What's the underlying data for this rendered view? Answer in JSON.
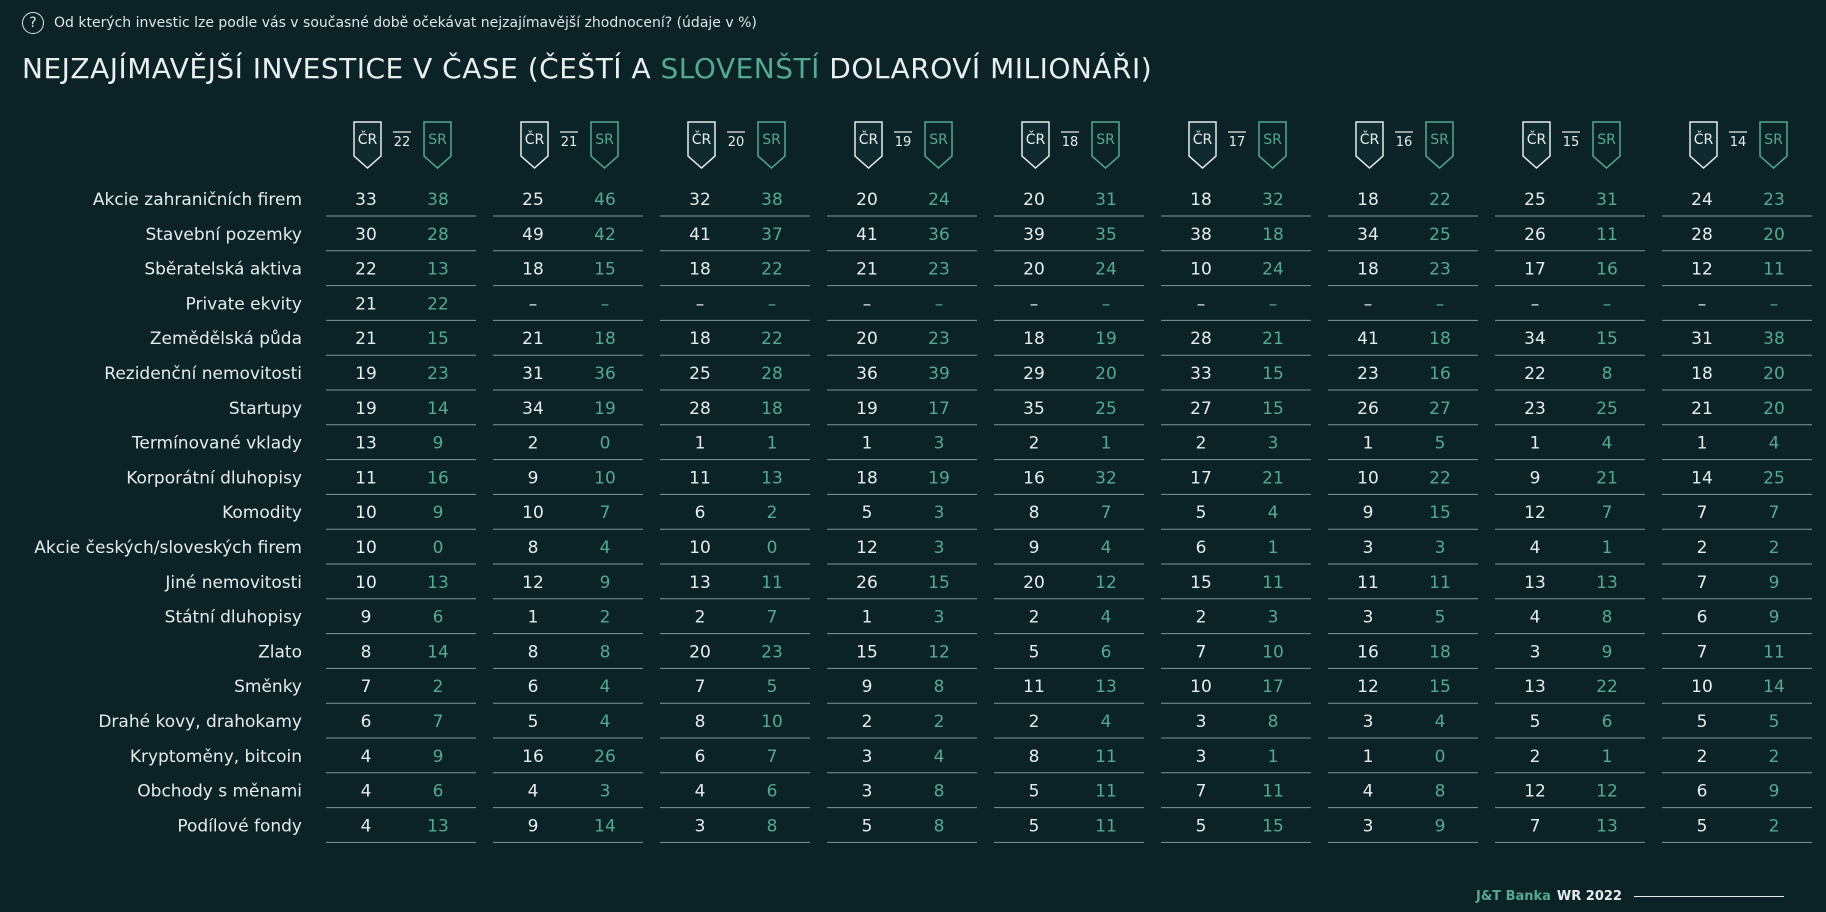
{
  "question": "Od kterých investic lze podle vás v současné době očekávat nejzajímavější zhodnocení? (údaje v %)",
  "title_part1": "NEJZAJÍMAVĚJŠÍ INVESTICE V ČASE (ČEŠTÍ A ",
  "title_part2": "SLOVENŠTÍ",
  "title_part3": " DOLAROVÍ MILIONÁŘI)",
  "colors": {
    "background": "#0b2226",
    "cz": "#e6ecec",
    "sk": "#55a993",
    "rule": "#7f9a9a"
  },
  "footer": {
    "brand": "J&T Banka",
    "report": "WR 2022"
  },
  "chart_data": {
    "type": "table",
    "badge_cz": "ČR",
    "badge_sk": "SR",
    "years": [
      "22",
      "21",
      "20",
      "19",
      "18",
      "17",
      "16",
      "15",
      "14"
    ],
    "dash": "–",
    "rows": [
      {
        "label": "Akcie zahraničních firem",
        "cz": [
          33,
          25,
          32,
          20,
          20,
          18,
          18,
          25,
          24
        ],
        "sk": [
          38,
          46,
          38,
          24,
          31,
          32,
          22,
          31,
          23
        ]
      },
      {
        "label": "Stavební pozemky",
        "cz": [
          30,
          49,
          41,
          41,
          39,
          38,
          34,
          26,
          28
        ],
        "sk": [
          28,
          42,
          37,
          36,
          35,
          18,
          25,
          11,
          20
        ]
      },
      {
        "label": "Sběratelská aktiva",
        "cz": [
          22,
          18,
          18,
          21,
          20,
          10,
          18,
          17,
          12
        ],
        "sk": [
          13,
          15,
          22,
          23,
          24,
          24,
          23,
          16,
          11
        ]
      },
      {
        "label": "Private ekvity",
        "cz": [
          21,
          null,
          null,
          null,
          null,
          null,
          null,
          null,
          null
        ],
        "sk": [
          22,
          null,
          null,
          null,
          null,
          null,
          null,
          null,
          null
        ]
      },
      {
        "label": "Zemědělská půda",
        "cz": [
          21,
          21,
          18,
          20,
          18,
          28,
          41,
          34,
          31
        ],
        "sk": [
          15,
          18,
          22,
          23,
          19,
          21,
          18,
          15,
          38
        ]
      },
      {
        "label": "Rezidenční nemovitosti",
        "cz": [
          19,
          31,
          25,
          36,
          29,
          33,
          23,
          22,
          18
        ],
        "sk": [
          23,
          36,
          28,
          39,
          20,
          15,
          16,
          8,
          20
        ]
      },
      {
        "label": "Startupy",
        "cz": [
          19,
          34,
          28,
          19,
          35,
          27,
          26,
          23,
          21
        ],
        "sk": [
          14,
          19,
          18,
          17,
          25,
          15,
          27,
          25,
          20
        ]
      },
      {
        "label": "Termínované vklady",
        "cz": [
          13,
          2,
          1,
          1,
          2,
          2,
          1,
          1,
          1
        ],
        "sk": [
          9,
          0,
          1,
          3,
          1,
          3,
          5,
          4,
          4
        ]
      },
      {
        "label": "Korporátní dluhopisy",
        "cz": [
          11,
          9,
          11,
          18,
          16,
          17,
          10,
          9,
          14
        ],
        "sk": [
          16,
          10,
          13,
          19,
          32,
          21,
          22,
          21,
          25
        ]
      },
      {
        "label": "Komodity",
        "cz": [
          10,
          10,
          6,
          5,
          8,
          5,
          9,
          12,
          7
        ],
        "sk": [
          9,
          7,
          2,
          3,
          7,
          4,
          15,
          7,
          7
        ]
      },
      {
        "label": "Akcie českých/sloveských firem",
        "cz": [
          10,
          8,
          10,
          12,
          9,
          6,
          3,
          4,
          2
        ],
        "sk": [
          0,
          4,
          0,
          3,
          4,
          1,
          3,
          1,
          2
        ]
      },
      {
        "label": "Jiné nemovitosti",
        "cz": [
          10,
          12,
          13,
          26,
          20,
          15,
          11,
          13,
          7
        ],
        "sk": [
          13,
          9,
          11,
          15,
          12,
          11,
          11,
          13,
          9
        ]
      },
      {
        "label": "Státní dluhopisy",
        "cz": [
          9,
          1,
          2,
          1,
          2,
          2,
          3,
          4,
          6
        ],
        "sk": [
          6,
          2,
          7,
          3,
          4,
          3,
          5,
          8,
          9
        ]
      },
      {
        "label": "Zlato",
        "cz": [
          8,
          8,
          20,
          15,
          5,
          7,
          16,
          3,
          7
        ],
        "sk": [
          14,
          8,
          23,
          12,
          6,
          10,
          18,
          9,
          11
        ]
      },
      {
        "label": "Směnky",
        "cz": [
          7,
          6,
          7,
          9,
          11,
          10,
          12,
          13,
          10
        ],
        "sk": [
          2,
          4,
          5,
          8,
          13,
          17,
          15,
          22,
          14
        ]
      },
      {
        "label": "Drahé kovy, drahokamy",
        "cz": [
          6,
          5,
          8,
          2,
          2,
          3,
          3,
          5,
          5
        ],
        "sk": [
          7,
          4,
          10,
          2,
          4,
          8,
          4,
          6,
          5
        ]
      },
      {
        "label": "Kryptoměny, bitcoin",
        "cz": [
          4,
          16,
          6,
          3,
          8,
          3,
          1,
          2,
          2
        ],
        "sk": [
          9,
          26,
          7,
          4,
          11,
          1,
          0,
          1,
          2
        ]
      },
      {
        "label": "Obchody s měnami",
        "cz": [
          4,
          4,
          4,
          3,
          5,
          7,
          4,
          12,
          6
        ],
        "sk": [
          6,
          3,
          6,
          8,
          11,
          11,
          8,
          12,
          9
        ]
      },
      {
        "label": "Podílové fondy",
        "cz": [
          4,
          9,
          3,
          5,
          5,
          5,
          3,
          7,
          5
        ],
        "sk": [
          13,
          14,
          8,
          8,
          11,
          15,
          9,
          13,
          2
        ]
      }
    ]
  }
}
